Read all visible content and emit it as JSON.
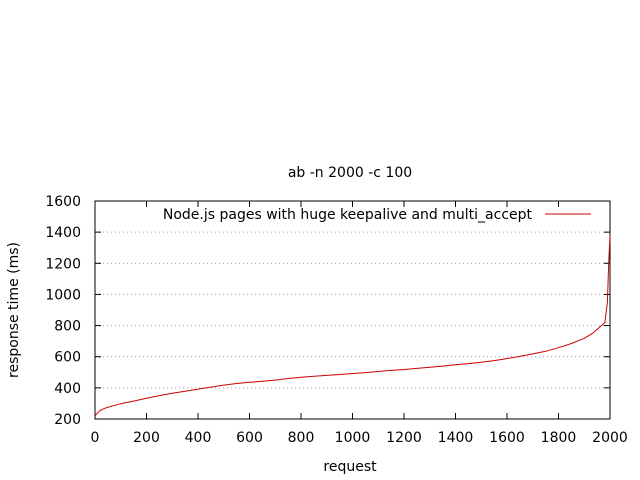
{
  "chart_data": {
    "type": "line",
    "title": "ab -n 2000 -c 100",
    "xlabel": "request",
    "ylabel": "response time (ms)",
    "xlim": [
      0,
      2000
    ],
    "ylim": [
      200,
      1600
    ],
    "xticks": [
      0,
      200,
      400,
      600,
      800,
      1000,
      1200,
      1400,
      1600,
      1800,
      2000
    ],
    "yticks": [
      200,
      400,
      600,
      800,
      1000,
      1200,
      1400,
      1600
    ],
    "grid": "horizontal dotted",
    "legend_position": "top-right",
    "series": [
      {
        "name": "Node.js pages with huge keepalive and multi_accept",
        "color": "#cc0000",
        "x": [
          0,
          10,
          20,
          40,
          70,
          100,
          150,
          200,
          250,
          300,
          350,
          400,
          450,
          500,
          550,
          600,
          650,
          700,
          750,
          800,
          850,
          900,
          950,
          1000,
          1050,
          1100,
          1150,
          1200,
          1250,
          1300,
          1350,
          1400,
          1450,
          1500,
          1550,
          1600,
          1650,
          1700,
          1750,
          1800,
          1850,
          1900,
          1930,
          1960,
          1980,
          1990,
          1995,
          2000
        ],
        "y": [
          220,
          240,
          255,
          270,
          285,
          298,
          315,
          333,
          350,
          365,
          378,
          392,
          405,
          418,
          428,
          436,
          443,
          450,
          460,
          468,
          474,
          480,
          486,
          492,
          498,
          505,
          512,
          518,
          525,
          532,
          540,
          548,
          556,
          565,
          575,
          588,
          602,
          618,
          635,
          658,
          685,
          718,
          748,
          790,
          820,
          950,
          1200,
          1380
        ]
      }
    ]
  }
}
